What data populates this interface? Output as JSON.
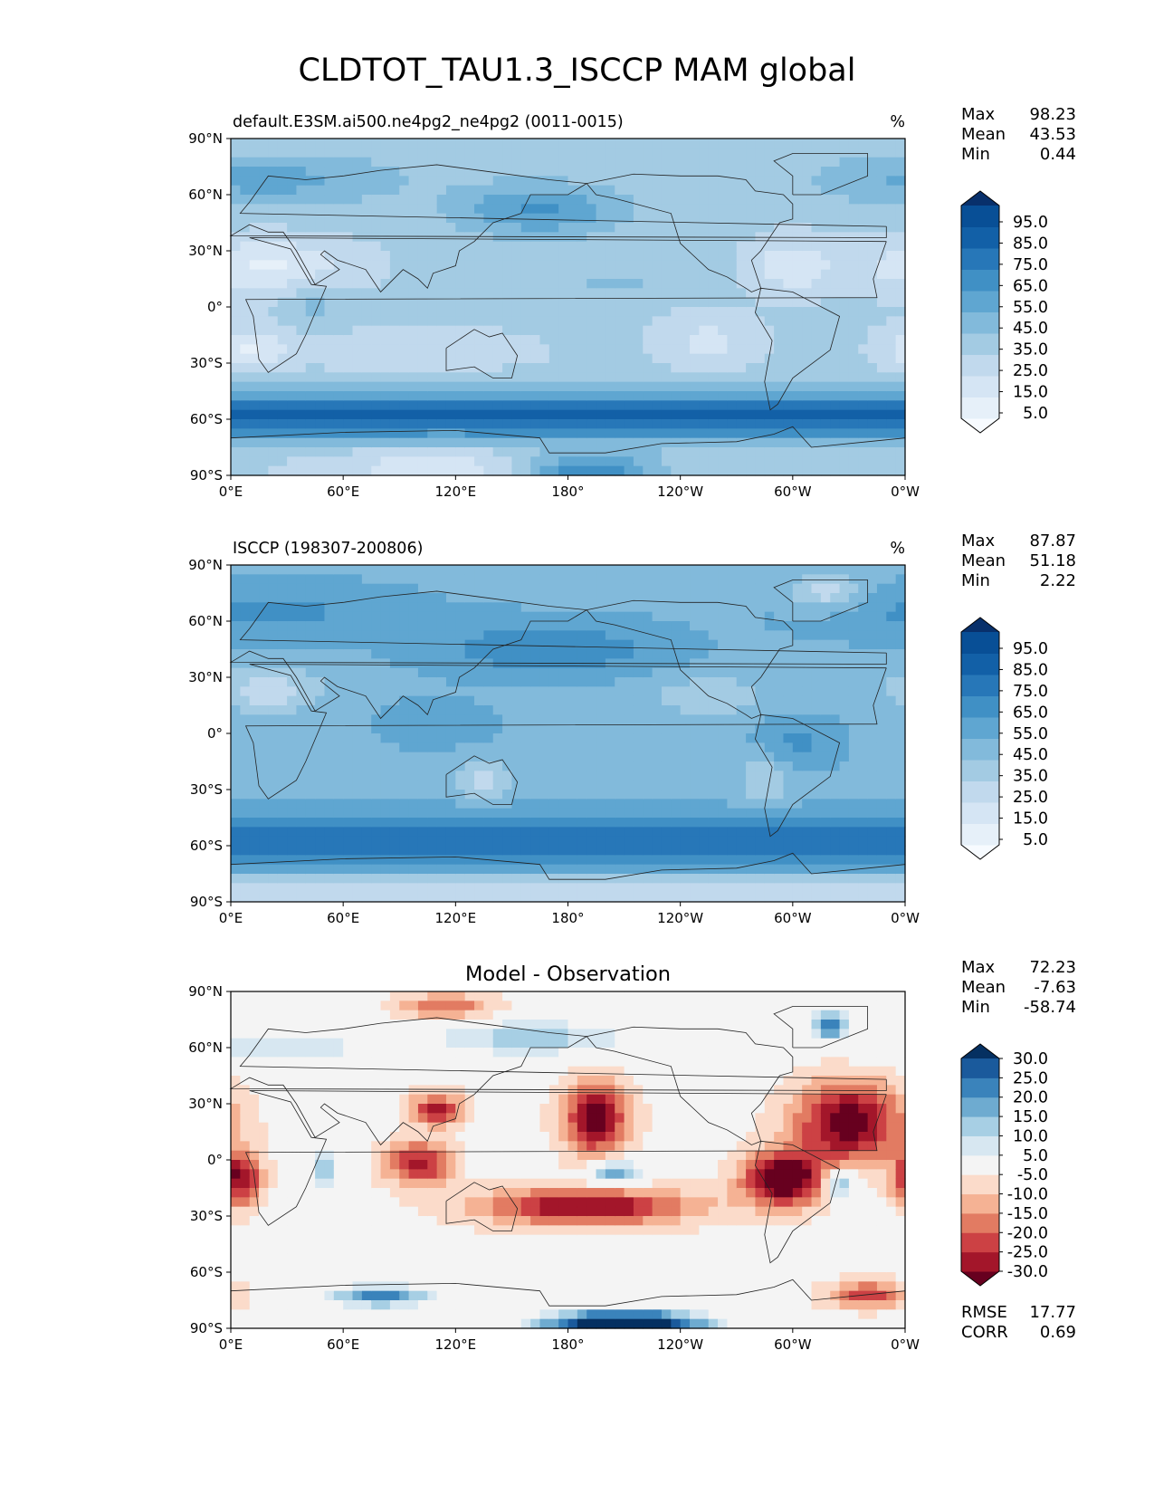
{
  "title": "CLDTOT_TAU1.3_ISCCP MAM global",
  "axis_ticks": {
    "lat": [
      "90°N",
      "60°N",
      "30°N",
      "0°",
      "30°S",
      "60°S",
      "90°S"
    ],
    "lon": [
      "0°E",
      "60°E",
      "120°E",
      "180°",
      "120°W",
      "60°W",
      "0°W"
    ]
  },
  "panels": [
    {
      "id": "model",
      "left_title": "default.E3SM.ai500.ne4pg2_ne4pg2 (0011-0015)",
      "center_title": "",
      "units": "%",
      "stats": [
        {
          "label": "Max",
          "value": "98.23"
        },
        {
          "label": "Mean",
          "value": "43.53"
        },
        {
          "label": "Min",
          "value": "0.44"
        }
      ],
      "colorbar": {
        "ticks": [
          "95.0",
          "85.0",
          "75.0",
          "65.0",
          "55.0",
          "45.0",
          "35.0",
          "25.0",
          "15.0",
          "5.0"
        ],
        "colors": [
          "#f7fbff",
          "#e6f0f9",
          "#d5e5f4",
          "#c1d9ed",
          "#a3cbe3",
          "#82badb",
          "#5fa6d1",
          "#4090c5",
          "#2777b8",
          "#1260a7",
          "#084f96",
          "#08306b"
        ]
      },
      "footer": []
    },
    {
      "id": "obs",
      "left_title": "ISCCP (198307-200806)",
      "center_title": "",
      "units": "%",
      "stats": [
        {
          "label": "Max",
          "value": "87.87"
        },
        {
          "label": "Mean",
          "value": "51.18"
        },
        {
          "label": "Min",
          "value": "2.22"
        }
      ],
      "colorbar": {
        "ticks": [
          "95.0",
          "85.0",
          "75.0",
          "65.0",
          "55.0",
          "45.0",
          "35.0",
          "25.0",
          "15.0",
          "5.0"
        ],
        "colors": [
          "#f7fbff",
          "#e6f0f9",
          "#d5e5f4",
          "#c1d9ed",
          "#a3cbe3",
          "#82badb",
          "#5fa6d1",
          "#4090c5",
          "#2777b8",
          "#1260a7",
          "#084f96",
          "#08306b"
        ]
      },
      "footer": []
    },
    {
      "id": "diff",
      "left_title": "",
      "center_title": "Model - Observation",
      "units": "",
      "stats": [
        {
          "label": "Max",
          "value": "72.23"
        },
        {
          "label": "Mean",
          "value": "-7.63"
        },
        {
          "label": "Min",
          "value": "-58.74"
        }
      ],
      "colorbar": {
        "ticks": [
          "30.0",
          "25.0",
          "20.0",
          "15.0",
          "10.0",
          "5.0",
          "-5.0",
          "-10.0",
          "-15.0",
          "-20.0",
          "-25.0",
          "-30.0"
        ],
        "colors": [
          "#67001f",
          "#a3162a",
          "#cc4144",
          "#e27b62",
          "#f5b294",
          "#fbdbca",
          "#f4f4f4",
          "#d7e7f1",
          "#a7cfe4",
          "#6eabd0",
          "#3a83bb",
          "#1a5a9c",
          "#053061"
        ]
      },
      "footer": [
        {
          "label": "RMSE",
          "value": "17.77"
        },
        {
          "label": "CORR",
          "value": "0.69"
        }
      ]
    }
  ]
}
